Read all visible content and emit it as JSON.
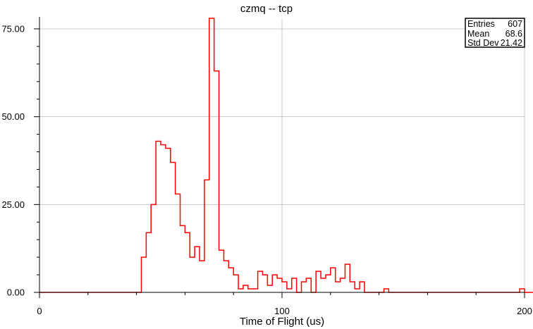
{
  "chart_data": {
    "type": "line",
    "title": "czmq -- tcp",
    "xlabel": "Time of Flight (us)",
    "ylabel": "",
    "xlim": [
      0,
      200
    ],
    "ylim": [
      0,
      78
    ],
    "grid": true,
    "x_tick_labels": [
      "0",
      "100",
      "200"
    ],
    "y_tick_labels": [
      "0.00",
      "25.00",
      "50.00",
      "75.00"
    ],
    "series_color": "#ff0000",
    "bin_width": 2,
    "bin_counts": [
      0,
      0,
      0,
      0,
      0,
      0,
      0,
      0,
      0,
      0,
      0,
      0,
      0,
      0,
      0,
      0,
      0,
      0,
      0,
      0,
      0,
      10,
      17,
      25,
      43,
      42,
      41,
      37,
      28,
      19,
      17,
      10,
      13,
      9,
      32,
      78,
      63,
      12,
      9,
      7,
      5,
      1,
      2,
      1,
      1,
      6,
      5,
      2,
      5,
      4,
      3,
      1,
      4,
      0,
      3,
      4,
      0,
      6,
      4,
      5,
      7,
      3,
      4,
      8,
      3,
      1,
      3,
      0,
      0,
      0,
      0,
      1,
      0,
      0,
      0,
      0,
      0,
      0,
      0,
      0,
      0,
      0,
      0,
      0,
      0,
      0,
      0,
      0,
      0,
      0,
      0,
      0,
      0,
      0,
      0,
      0,
      0,
      0,
      0,
      1,
      0,
      0,
      0,
      0,
      0
    ],
    "stats": {
      "entries_label": "Entries",
      "entries": "607",
      "mean_label": "Mean",
      "mean": "68.6",
      "std_label": "Std Dev",
      "std": "21.42"
    }
  }
}
